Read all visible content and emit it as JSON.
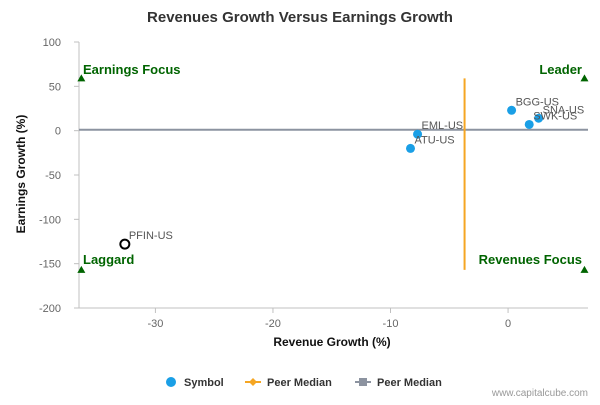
{
  "chart_data": {
    "type": "scatter",
    "title": "Revenues Growth Versus Earnings Growth",
    "xlabel": "Revenue Growth (%)",
    "ylabel": "Earnings Growth (%)",
    "xlim": [
      -36.5,
      6.8
    ],
    "ylim": [
      -200,
      100
    ],
    "x_ticks": [
      -30,
      -20,
      -10,
      0
    ],
    "y_ticks": [
      100,
      50,
      0,
      -50,
      -100,
      -150,
      -200
    ],
    "grid": false,
    "points": [
      {
        "label": "BGG-US",
        "x": 0.3,
        "y": 23,
        "style": "filled"
      },
      {
        "label": "SNA-US",
        "x": 2.6,
        "y": 14,
        "style": "filled"
      },
      {
        "label": "SWK-US",
        "x": 1.8,
        "y": 7,
        "style": "filled"
      },
      {
        "label": "EML-US",
        "x": -7.7,
        "y": -4,
        "style": "filled"
      },
      {
        "label": "ATU-US",
        "x": -8.3,
        "y": -20,
        "style": "filled"
      },
      {
        "label": "PFIN-US",
        "x": -32.6,
        "y": -128,
        "style": "hollow"
      }
    ],
    "peer_median": {
      "x": -3.7,
      "y": 1,
      "x_span": [
        -36.5,
        6.8
      ],
      "y_span": [
        -157,
        59
      ]
    },
    "quadrants": {
      "top_left": "Earnings Focus",
      "top_right": "Leader",
      "bottom_left": "Laggard",
      "bottom_right": "Revenues Focus"
    },
    "corner_markers": [
      {
        "x": -36.3,
        "y": 59
      },
      {
        "x": 6.5,
        "y": 59
      },
      {
        "x": -36.3,
        "y": -157
      },
      {
        "x": 6.5,
        "y": -157
      }
    ],
    "legend": {
      "placement": "bottom",
      "items": [
        {
          "label": "Symbol",
          "kind": "dot"
        },
        {
          "label": "Peer Median",
          "kind": "diamond-line"
        },
        {
          "label": "Peer Median",
          "kind": "square-line"
        }
      ]
    },
    "watermark": "www.capitalcube.com"
  },
  "colors": {
    "point": "#1a9fe6",
    "hollow_point": "#000000",
    "median_vertical": "#f5a623",
    "median_horizontal": "#8c93a0",
    "quadrant_text": "#006400",
    "marker": "#006400",
    "axis": "#c0c0c0",
    "tick_text": "#666666",
    "title_text": "#333333",
    "watermark_text": "#999999"
  }
}
